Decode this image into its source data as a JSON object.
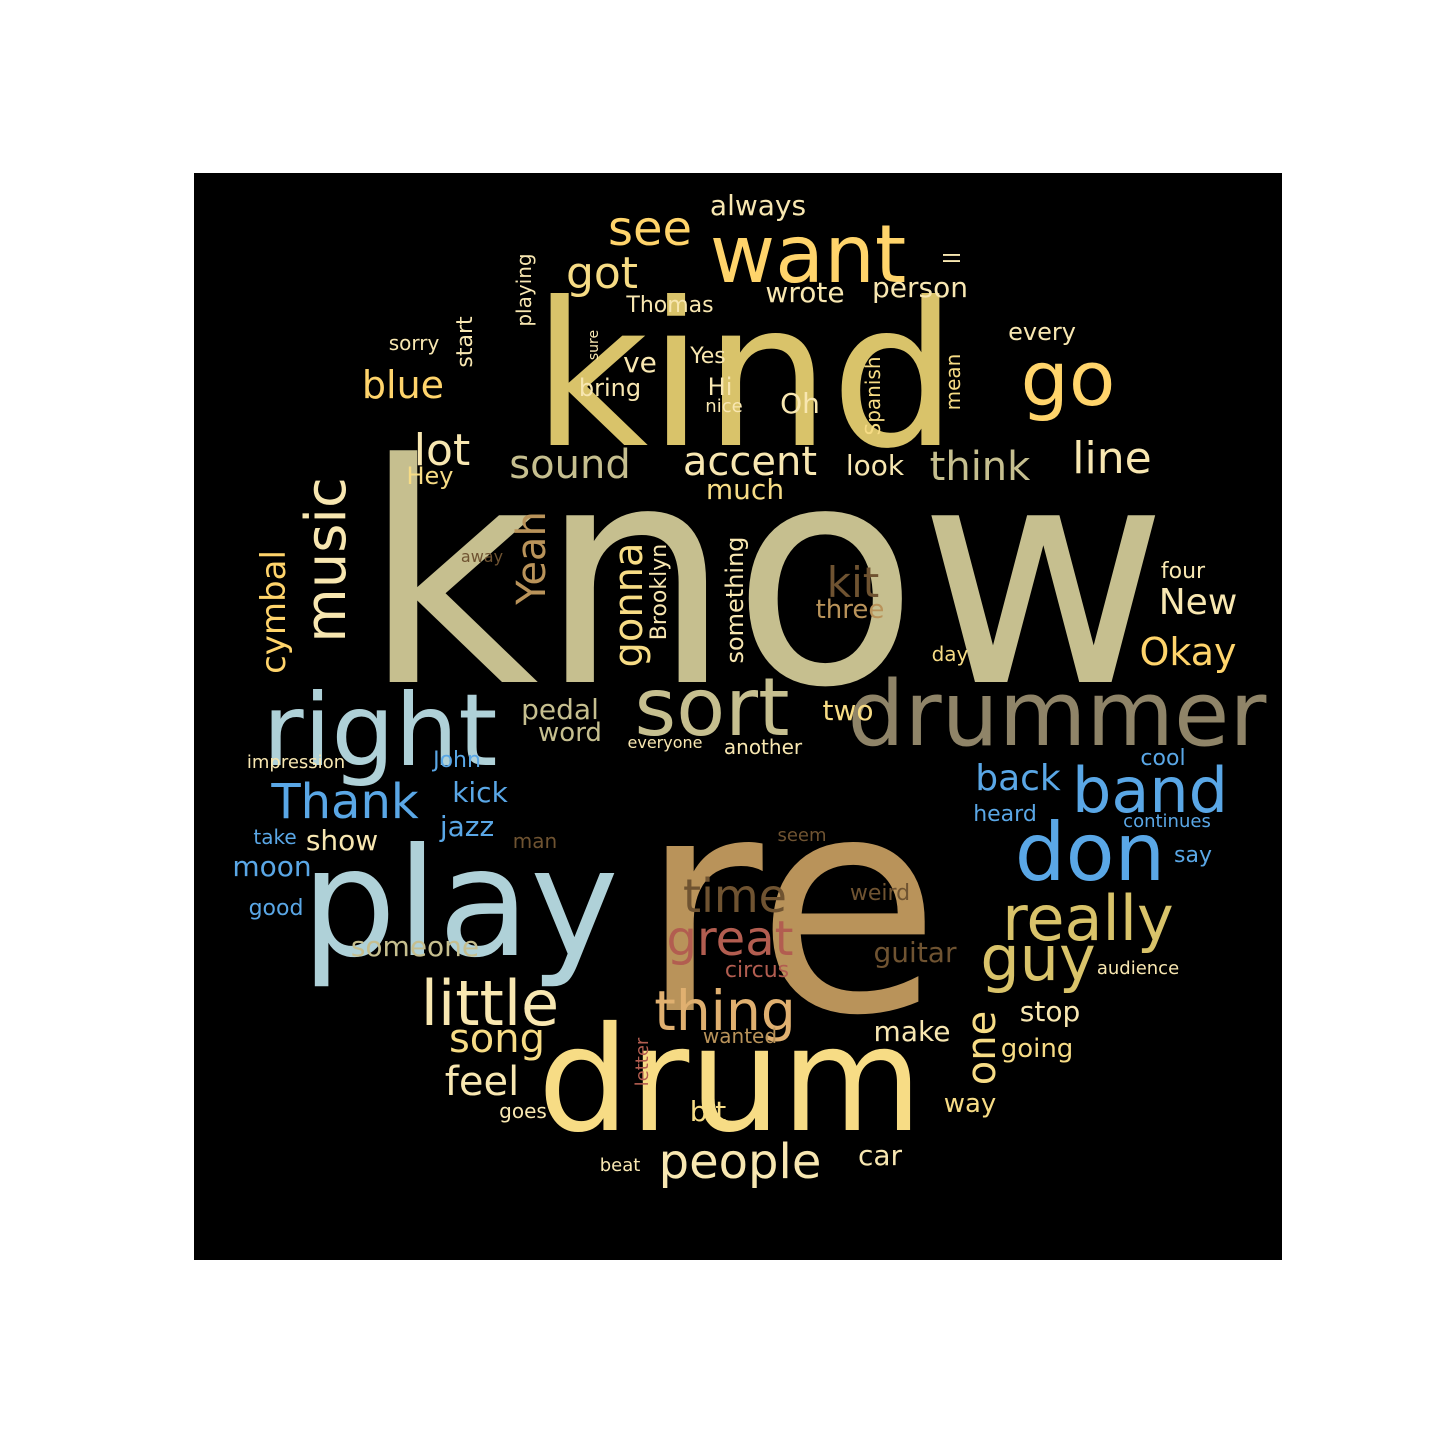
{
  "wordcloud": {
    "background": "#000000",
    "palette": {
      "gold": "#d9c36a",
      "khaki": "#c6bf8f",
      "tan": "#b9935a",
      "light_blue": "#afd1d8",
      "sky_blue": "#5aa7e6",
      "cream": "#f8e7b1",
      "yellow": "#ffd46b",
      "brown": "#6f5331",
      "rust": "#b25d50",
      "taupe": "#8f8468",
      "peach": "#e0b070"
    },
    "words": [
      {
        "text": "know"
      },
      {
        "text": "re"
      },
      {
        "text": "kind"
      },
      {
        "text": "play"
      },
      {
        "text": "drum"
      },
      {
        "text": "right"
      },
      {
        "text": "drummer"
      },
      {
        "text": "want"
      },
      {
        "text": "sort"
      },
      {
        "text": "don"
      },
      {
        "text": "go"
      },
      {
        "text": "band"
      },
      {
        "text": "really"
      },
      {
        "text": "little"
      },
      {
        "text": "guy"
      },
      {
        "text": "music"
      },
      {
        "text": "thing"
      },
      {
        "text": "people"
      },
      {
        "text": "Thank"
      },
      {
        "text": "great"
      },
      {
        "text": "time"
      },
      {
        "text": "see"
      },
      {
        "text": "got"
      },
      {
        "text": "lot"
      },
      {
        "text": "line"
      },
      {
        "text": "accent"
      },
      {
        "text": "sound"
      },
      {
        "text": "think"
      },
      {
        "text": "blue"
      },
      {
        "text": "kit"
      },
      {
        "text": "Yeah"
      },
      {
        "text": "gonna"
      },
      {
        "text": "song"
      },
      {
        "text": "feel"
      },
      {
        "text": "one"
      },
      {
        "text": "Okay"
      },
      {
        "text": "New"
      },
      {
        "text": "back"
      },
      {
        "text": "cymbal"
      },
      {
        "text": "always"
      },
      {
        "text": "wrote"
      },
      {
        "text": "person"
      },
      {
        "text": "ve"
      },
      {
        "text": "Oh"
      },
      {
        "text": "Hi"
      },
      {
        "text": "look"
      },
      {
        "text": "much"
      },
      {
        "text": "pedal"
      },
      {
        "text": "word"
      },
      {
        "text": "two"
      },
      {
        "text": "kick"
      },
      {
        "text": "jazz"
      },
      {
        "text": "show"
      },
      {
        "text": "moon"
      },
      {
        "text": "someone"
      },
      {
        "text": "guitar"
      },
      {
        "text": "stop"
      },
      {
        "text": "make"
      },
      {
        "text": "going"
      },
      {
        "text": "bit"
      },
      {
        "text": "car"
      },
      {
        "text": "way"
      },
      {
        "text": "three"
      },
      {
        "text": "Brooklyn"
      },
      {
        "text": "something"
      },
      {
        "text": "Hey"
      },
      {
        "text": "sorry"
      },
      {
        "text": "start"
      },
      {
        "text": "playing"
      },
      {
        "text": "Thomas"
      },
      {
        "text": "ll"
      },
      {
        "text": "every"
      },
      {
        "text": "Yes"
      },
      {
        "text": "bring"
      },
      {
        "text": "nice"
      },
      {
        "text": "Spanish"
      },
      {
        "text": "mean"
      },
      {
        "text": "sure"
      },
      {
        "text": "four"
      },
      {
        "text": "day"
      },
      {
        "text": "away"
      },
      {
        "text": "everyone"
      },
      {
        "text": "another"
      },
      {
        "text": "impression"
      },
      {
        "text": "John"
      },
      {
        "text": "cool"
      },
      {
        "text": "heard"
      },
      {
        "text": "continues"
      },
      {
        "text": "take"
      },
      {
        "text": "man"
      },
      {
        "text": "seem"
      },
      {
        "text": "say"
      },
      {
        "text": "good"
      },
      {
        "text": "weird"
      },
      {
        "text": "circus"
      },
      {
        "text": "audience"
      },
      {
        "text": "wanted"
      },
      {
        "text": "letter"
      },
      {
        "text": "goes"
      },
      {
        "text": "beat"
      }
    ]
  }
}
